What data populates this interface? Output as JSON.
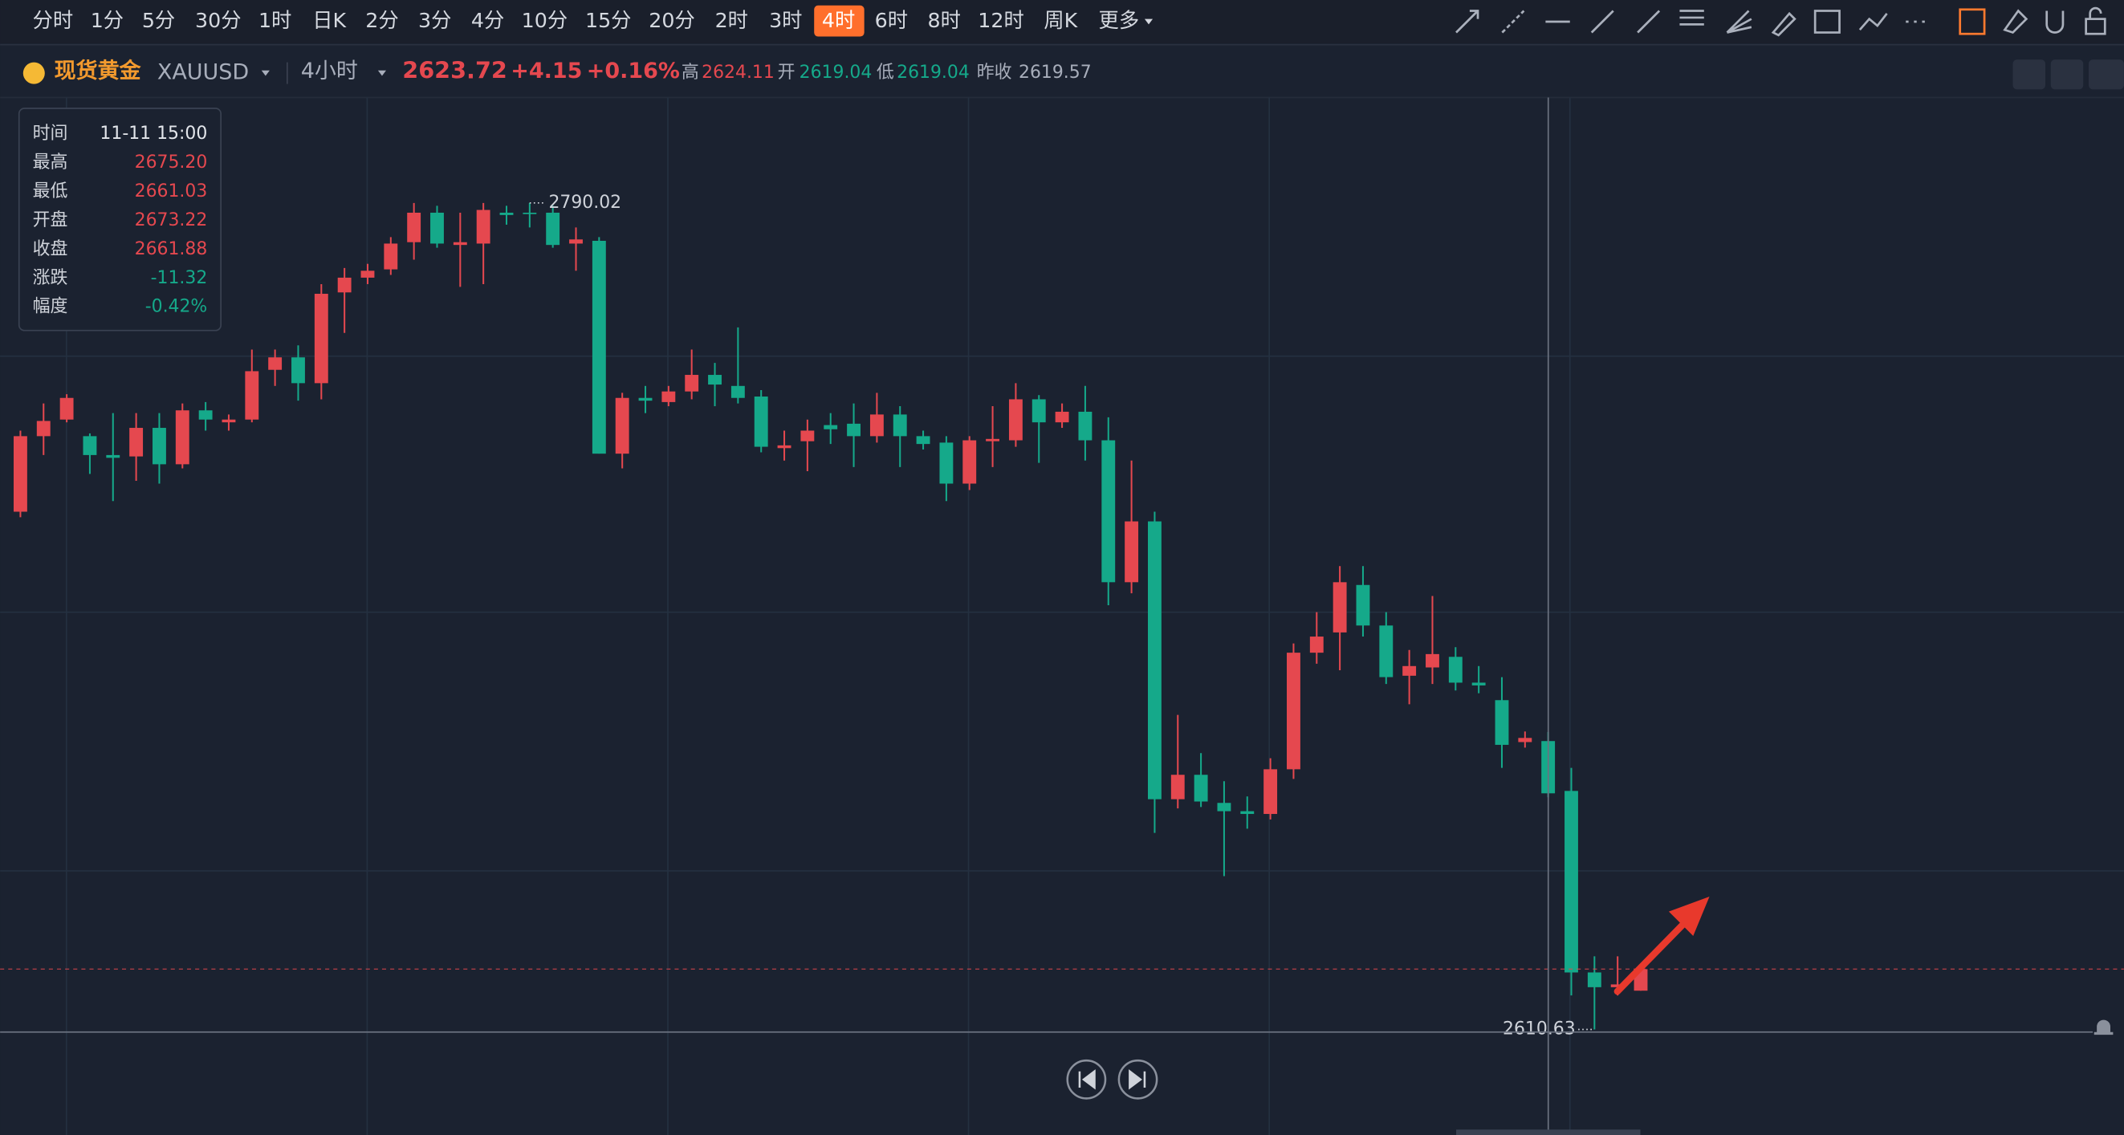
{
  "toolbar": {
    "intervals": [
      "分时",
      "1分",
      "5分",
      "30分",
      "1时",
      "日K",
      "2分",
      "3分",
      "4分",
      "10分",
      "15分",
      "20分",
      "2时",
      "3时",
      "4时",
      "6时",
      "8时",
      "12时",
      "周K",
      "更多"
    ],
    "active": "4时"
  },
  "quote": {
    "name": "现货黄金",
    "symbol": "XAUUSD",
    "interval": "4小时",
    "price": "2623.72",
    "change": "+4.15",
    "change_pct": "+0.16%",
    "high_label": "高",
    "high": "2624.11",
    "open_label": "开",
    "open": "2619.04",
    "low_label": "低",
    "low": "2619.04",
    "prev_close_label": "昨收",
    "prev_close": "2619.57"
  },
  "tooltip": {
    "rows": [
      [
        "时间",
        "11-11 15:00"
      ],
      [
        "最高",
        "2675.20"
      ],
      [
        "最低",
        "2661.03"
      ],
      [
        "开盘",
        "2673.22"
      ],
      [
        "收盘",
        "2661.88"
      ],
      [
        "涨跌",
        "-11.32"
      ],
      [
        "幅度",
        "-0.42%"
      ]
    ]
  },
  "chart_data": {
    "type": "candlestick",
    "up_color": "#e5484f",
    "down_color": "#15a98a",
    "ylim": [
      2588.6,
      2812.9
    ],
    "high_marker": 2790.02,
    "low_marker": 2610.63,
    "candles": [
      [
        2723.0,
        2740.6,
        2721.8,
        2739.4
      ],
      [
        2739.4,
        2746.5,
        2735.3,
        2742.7
      ],
      [
        2743.0,
        2748.5,
        2742.4,
        2747.7
      ],
      [
        2739.4,
        2740.0,
        2731.2,
        2735.3
      ],
      [
        2735.3,
        2744.4,
        2725.3,
        2734.7
      ],
      [
        2735.0,
        2744.4,
        2729.7,
        2741.2
      ],
      [
        2741.2,
        2744.4,
        2729.1,
        2733.3
      ],
      [
        2733.3,
        2746.5,
        2732.4,
        2745.0
      ],
      [
        2745.0,
        2746.8,
        2740.6,
        2743.0
      ],
      [
        2742.4,
        2744.1,
        2740.6,
        2743.0
      ],
      [
        2743.0,
        2758.2,
        2742.4,
        2753.5
      ],
      [
        2753.8,
        2758.2,
        2750.3,
        2756.5
      ],
      [
        2756.5,
        2759.1,
        2747.1,
        2750.9
      ],
      [
        2750.9,
        2772.4,
        2747.4,
        2770.3
      ],
      [
        2770.6,
        2775.9,
        2761.8,
        2773.8
      ],
      [
        2773.8,
        2776.8,
        2772.4,
        2775.3
      ],
      [
        2775.6,
        2782.6,
        2774.4,
        2781.2
      ],
      [
        2781.5,
        2790.0,
        2777.7,
        2787.9
      ],
      [
        2787.9,
        2789.4,
        2780.3,
        2781.2
      ],
      [
        2780.9,
        2787.9,
        2771.8,
        2781.5
      ],
      [
        2781.2,
        2790.0,
        2772.4,
        2788.5
      ],
      [
        2787.9,
        2789.4,
        2785.3,
        2787.4
      ],
      [
        2787.9,
        2790.02,
        2784.7,
        2787.6
      ],
      [
        2787.9,
        2789.4,
        2780.3,
        2780.9
      ],
      [
        2781.2,
        2784.7,
        2775.3,
        2782.1
      ],
      [
        2781.8,
        2782.6,
        2735.6,
        2735.6
      ],
      [
        2735.6,
        2748.8,
        2732.4,
        2747.7
      ],
      [
        2747.7,
        2750.3,
        2744.4,
        2747.1
      ],
      [
        2746.8,
        2750.3,
        2745.9,
        2749.1
      ],
      [
        2749.1,
        2758.2,
        2747.4,
        2752.7
      ],
      [
        2752.7,
        2755.3,
        2745.9,
        2750.6
      ],
      [
        2750.3,
        2763.0,
        2746.5,
        2747.7
      ],
      [
        2748.0,
        2749.4,
        2735.9,
        2737.1
      ],
      [
        2736.8,
        2740.6,
        2734.1,
        2737.4
      ],
      [
        2738.3,
        2743.0,
        2731.8,
        2740.6
      ],
      [
        2741.8,
        2744.4,
        2737.7,
        2740.9
      ],
      [
        2742.1,
        2746.5,
        2732.7,
        2739.4
      ],
      [
        2739.4,
        2748.8,
        2738.0,
        2744.1
      ],
      [
        2744.1,
        2745.9,
        2732.7,
        2739.4
      ],
      [
        2739.4,
        2740.6,
        2736.5,
        2737.7
      ],
      [
        2738.0,
        2739.4,
        2725.3,
        2729.1
      ],
      [
        2729.1,
        2739.4,
        2727.7,
        2738.5
      ],
      [
        2738.3,
        2745.9,
        2732.7,
        2738.8
      ],
      [
        2738.5,
        2750.9,
        2737.1,
        2747.4
      ],
      [
        2747.4,
        2748.3,
        2733.6,
        2742.4
      ],
      [
        2742.4,
        2746.5,
        2741.2,
        2744.7
      ],
      [
        2744.7,
        2750.3,
        2734.1,
        2738.5
      ],
      [
        2738.5,
        2743.5,
        2702.7,
        2707.7
      ],
      [
        2707.7,
        2734.1,
        2705.3,
        2720.9
      ],
      [
        2720.9,
        2723.0,
        2653.3,
        2660.6
      ],
      [
        2660.6,
        2678.9,
        2658.6,
        2665.9
      ],
      [
        2665.9,
        2670.6,
        2658.9,
        2660.1
      ],
      [
        2659.8,
        2664.5,
        2643.9,
        2658.0
      ],
      [
        2658.0,
        2661.2,
        2654.2,
        2657.4
      ],
      [
        2657.4,
        2669.5,
        2656.2,
        2667.1
      ],
      [
        2667.1,
        2694.4,
        2665.0,
        2692.4
      ],
      [
        2692.4,
        2701.2,
        2690.0,
        2695.9
      ],
      [
        2696.8,
        2711.2,
        2688.6,
        2707.7
      ],
      [
        2707.1,
        2711.2,
        2695.9,
        2698.3
      ],
      [
        2698.3,
        2701.2,
        2685.6,
        2687.1
      ],
      [
        2687.4,
        2693.0,
        2681.2,
        2689.5
      ],
      [
        2689.2,
        2704.7,
        2685.6,
        2692.1
      ],
      [
        2691.5,
        2693.6,
        2684.2,
        2685.9
      ],
      [
        2685.9,
        2689.5,
        2683.6,
        2685.3
      ],
      [
        2682.1,
        2687.1,
        2667.4,
        2672.4
      ],
      [
        2673.0,
        2675.3,
        2671.8,
        2673.9
      ],
      [
        2673.22,
        2675.2,
        2661.03,
        2661.88
      ],
      [
        2662.4,
        2667.4,
        2618.0,
        2623.0
      ],
      [
        2623.0,
        2626.5,
        2610.63,
        2619.8
      ],
      [
        2619.8,
        2626.5,
        2618.0,
        2620.4
      ],
      [
        2619.04,
        2624.11,
        2619.04,
        2623.72
      ]
    ]
  }
}
